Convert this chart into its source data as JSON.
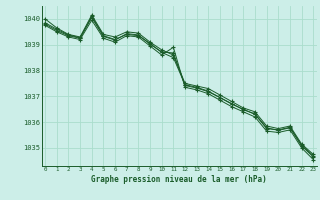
{
  "title": "Graphe pression niveau de la mer (hPa)",
  "background_color": "#cceee8",
  "grid_color": "#aaddcc",
  "line_color": "#1a5c2a",
  "xlim": [
    -0.3,
    23.3
  ],
  "ylim": [
    1034.3,
    1040.5
  ],
  "yticks": [
    1035,
    1036,
    1037,
    1038,
    1039,
    1040
  ],
  "xticks": [
    0,
    1,
    2,
    3,
    4,
    5,
    6,
    7,
    8,
    9,
    10,
    11,
    12,
    13,
    14,
    15,
    16,
    17,
    18,
    19,
    20,
    21,
    22,
    23
  ],
  "lines": [
    [
      1039.8,
      1039.55,
      1039.35,
      1039.25,
      1040.1,
      1039.35,
      1039.2,
      1039.4,
      1039.35,
      1039.05,
      1038.7,
      1038.5,
      1037.45,
      1037.35,
      1037.2,
      1036.95,
      1036.7,
      1036.5,
      1036.3,
      1035.75,
      1035.7,
      1035.8,
      1035.1,
      1034.7
    ],
    [
      1040.0,
      1039.65,
      1039.4,
      1039.3,
      1040.15,
      1039.4,
      1039.3,
      1039.5,
      1039.45,
      1039.1,
      1038.8,
      1038.6,
      1037.5,
      1037.4,
      1037.3,
      1037.05,
      1036.8,
      1036.55,
      1036.4,
      1035.85,
      1035.75,
      1035.85,
      1035.15,
      1034.75
    ],
    [
      1039.75,
      1039.5,
      1039.3,
      1039.2,
      1039.95,
      1039.25,
      1039.1,
      1039.35,
      1039.3,
      1038.95,
      1038.6,
      1038.9,
      1037.35,
      1037.25,
      1037.1,
      1036.85,
      1036.6,
      1036.4,
      1036.2,
      1035.65,
      1035.6,
      1035.7,
      1035.0,
      1034.55
    ],
    [
      1039.85,
      1039.6,
      1039.38,
      1039.27,
      1040.05,
      1039.32,
      1039.18,
      1039.43,
      1039.38,
      1039.02,
      1038.72,
      1038.68,
      1037.42,
      1037.32,
      1037.18,
      1036.95,
      1036.72,
      1036.48,
      1036.32,
      1035.78,
      1035.68,
      1035.78,
      1035.08,
      1034.65
    ]
  ]
}
